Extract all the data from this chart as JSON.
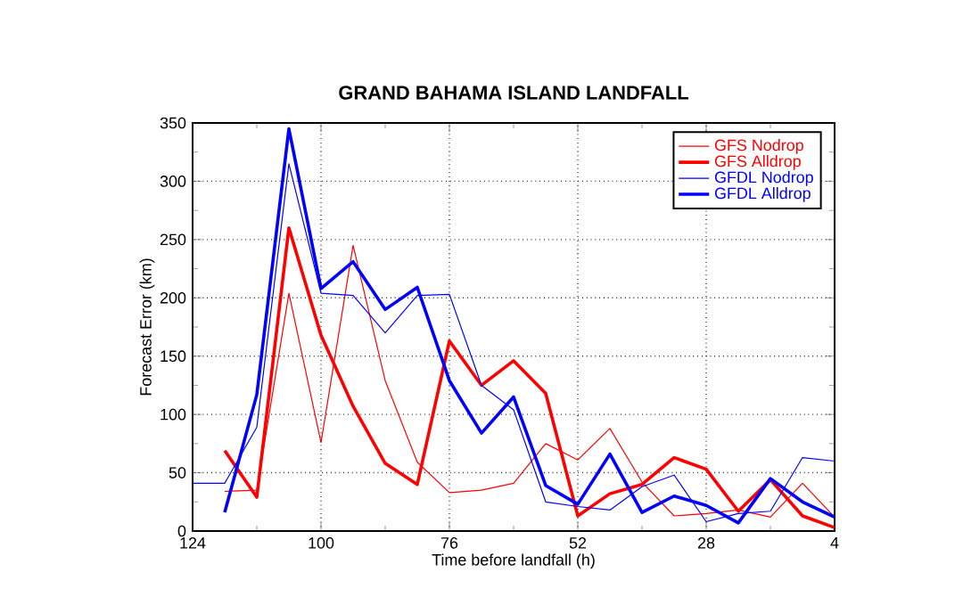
{
  "chart_data": {
    "type": "line",
    "title": "GRAND BAHAMA ISLAND LANDFALL",
    "xlabel": "Time before landfall (h)",
    "ylabel": "Forecast Error (km)",
    "x": [
      118,
      112,
      106,
      100,
      94,
      88,
      82,
      76,
      70,
      64,
      58,
      52,
      46,
      40,
      34,
      28,
      22,
      16,
      10,
      4
    ],
    "series": [
      {
        "name": "GFS Nodrop",
        "color": "#ff0000",
        "values": [
          34,
          35,
          204,
          76,
          245,
          129,
          59,
          33,
          35,
          41,
          75,
          61,
          88,
          42,
          13,
          15,
          18,
          12,
          41,
          12
        ]
      },
      {
        "name": "GFS Alldrop",
        "color": "#ff0000",
        "values": [
          69,
          29,
          260,
          168,
          107,
          58,
          40,
          163,
          125,
          146,
          118,
          13,
          32,
          40,
          63,
          53,
          17,
          44,
          13,
          3
        ]
      },
      {
        "name": "GFDL Nodrop",
        "color": "#0000ff",
        "x": [
          124,
          118,
          112,
          106,
          100,
          94,
          88,
          82,
          76,
          70,
          64,
          58,
          52,
          46,
          40,
          34,
          28,
          22,
          16,
          10,
          4
        ],
        "values": [
          41,
          41,
          89,
          315,
          204,
          202,
          170,
          202,
          203,
          125,
          104,
          25,
          21,
          18,
          38,
          48,
          8,
          15,
          17,
          63,
          60
        ]
      },
      {
        "name": "GFDL Alldrop",
        "color": "#0000ff",
        "values": [
          16,
          117,
          345,
          208,
          231,
          190,
          209,
          129,
          84,
          115,
          39,
          23,
          66,
          16,
          30,
          22,
          7,
          45,
          25,
          12
        ]
      }
    ],
    "xlim": [
      124,
      4
    ],
    "xticks": [
      124,
      100,
      76,
      52,
      28,
      4
    ],
    "ylim": [
      0,
      350
    ],
    "yticks": [
      0,
      50,
      100,
      150,
      200,
      250,
      300,
      350
    ],
    "grid": true,
    "legend": "top right",
    "marker": "none",
    "line_style": "solid"
  }
}
